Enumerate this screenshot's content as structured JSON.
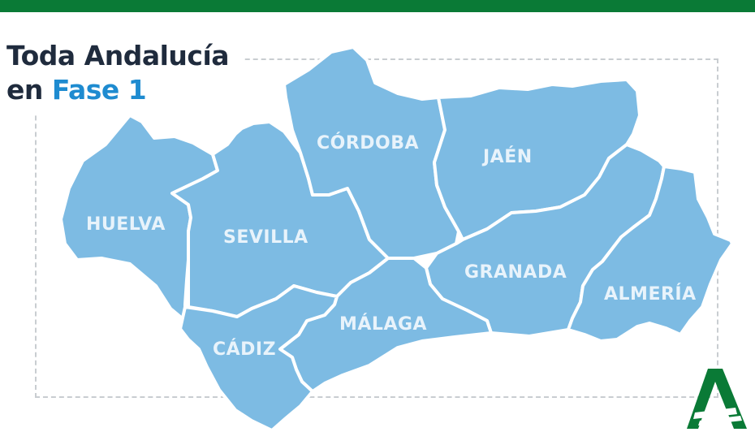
{
  "title": {
    "line1": "Toda Andalucía",
    "line2_prefix": "en ",
    "line2_accent": "Fase 1"
  },
  "provinces": {
    "huelva": "HUELVA",
    "sevilla": "SEVILLA",
    "cordoba": "CÓRDOBA",
    "jaen": "JAÉN",
    "granada": "GRANADA",
    "almeria": "ALMERÍA",
    "malaga": "MÁLAGA",
    "cadiz": "CÁDIZ"
  },
  "colors": {
    "header_bar": "#0a7a36",
    "province_fill": "#7dbbe3",
    "title_text": "#1f2b3d",
    "title_accent": "#1e8bd0",
    "label_text": "#e8f3fb",
    "logo": "#0a7a36"
  },
  "logo_icon": "junta-de-andalucia-logo-icon"
}
